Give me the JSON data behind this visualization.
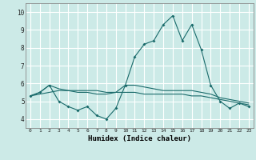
{
  "title": "",
  "xlabel": "Humidex (Indice chaleur)",
  "background_color": "#cceae7",
  "grid_color": "#ffffff",
  "line_color": "#1a6b6b",
  "x_labels": [
    "0",
    "1",
    "2",
    "3",
    "4",
    "5",
    "6",
    "7",
    "8",
    "9",
    "10",
    "11",
    "12",
    "13",
    "14",
    "15",
    "16",
    "17",
    "18",
    "19",
    "20",
    "21",
    "22",
    "23"
  ],
  "ylim": [
    3.5,
    10.5
  ],
  "xlim": [
    -0.5,
    23.5
  ],
  "yticks": [
    4,
    5,
    6,
    7,
    8,
    9,
    10
  ],
  "series1": [
    5.3,
    5.5,
    5.9,
    5.0,
    4.7,
    4.5,
    4.7,
    4.2,
    4.0,
    4.6,
    5.9,
    7.5,
    8.2,
    8.4,
    9.3,
    9.8,
    8.4,
    9.3,
    7.9,
    5.9,
    5.0,
    4.6,
    4.9,
    4.7
  ],
  "series2": [
    5.3,
    5.5,
    5.9,
    5.7,
    5.6,
    5.5,
    5.5,
    5.4,
    5.4,
    5.5,
    5.9,
    5.9,
    5.8,
    5.7,
    5.6,
    5.6,
    5.6,
    5.6,
    5.5,
    5.4,
    5.2,
    5.1,
    5.0,
    4.9
  ],
  "series3": [
    5.3,
    5.4,
    5.5,
    5.6,
    5.6,
    5.6,
    5.6,
    5.6,
    5.5,
    5.5,
    5.5,
    5.5,
    5.4,
    5.4,
    5.4,
    5.4,
    5.4,
    5.3,
    5.3,
    5.2,
    5.1,
    5.0,
    4.9,
    4.8
  ]
}
